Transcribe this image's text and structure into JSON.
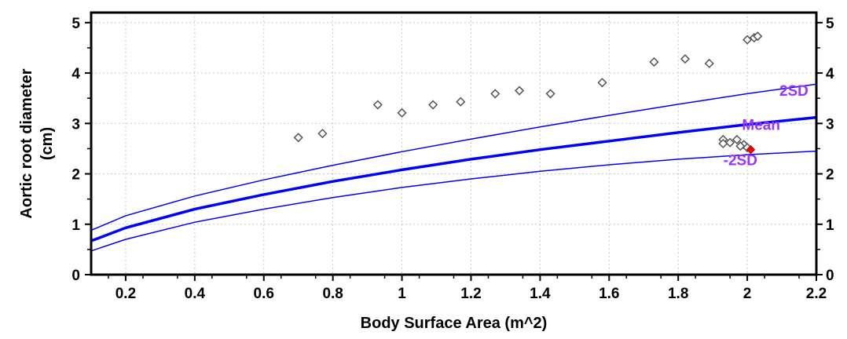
{
  "chart_data": {
    "type": "scatter",
    "title": "",
    "xlabel": "Body Surface Area (m^2)",
    "ylabel_line1": "Aortic root diameter",
    "ylabel_line2": "(cm)",
    "xlim": [
      0.1,
      2.2
    ],
    "ylim": [
      0,
      5.2
    ],
    "x_ticks": [
      0.2,
      0.4,
      0.6,
      0.8,
      1,
      1.2,
      1.4,
      1.6,
      1.8,
      2,
      2.2
    ],
    "x_tick_labels": [
      "0.2",
      "0.4",
      "0.6",
      "0.8",
      "1",
      "1.2",
      "1.4",
      "1.6",
      "1.8",
      "2",
      "2.2"
    ],
    "y_ticks": [
      0,
      1,
      2,
      3,
      4,
      5
    ],
    "y_tick_labels": [
      "0",
      "1",
      "2",
      "3",
      "4",
      "5"
    ],
    "grid": true,
    "colors": {
      "curve": "#0000ff",
      "label": "#9933ff",
      "marker": "#555555",
      "highlight": "#ff0000"
    },
    "curves": [
      {
        "name": "2SD",
        "label": "2SD",
        "x": [
          0.1,
          0.2,
          0.4,
          0.6,
          0.8,
          1.0,
          1.2,
          1.4,
          1.6,
          1.8,
          2.0,
          2.2
        ],
        "y": [
          0.88,
          1.17,
          1.56,
          1.88,
          2.17,
          2.44,
          2.69,
          2.93,
          3.16,
          3.38,
          3.59,
          3.78
        ]
      },
      {
        "name": "Mean",
        "label": "Mean",
        "x": [
          0.1,
          0.2,
          0.4,
          0.6,
          0.8,
          1.0,
          1.2,
          1.4,
          1.6,
          1.8,
          2.0,
          2.2
        ],
        "y": [
          0.67,
          0.93,
          1.3,
          1.59,
          1.85,
          2.08,
          2.29,
          2.48,
          2.65,
          2.82,
          2.98,
          3.12
        ]
      },
      {
        "name": "-2SD",
        "label": "-2SD",
        "x": [
          0.1,
          0.2,
          0.4,
          0.6,
          0.8,
          1.0,
          1.2,
          1.4,
          1.6,
          1.8,
          2.0,
          2.2
        ],
        "y": [
          0.47,
          0.7,
          1.04,
          1.3,
          1.53,
          1.73,
          1.9,
          2.05,
          2.18,
          2.29,
          2.38,
          2.45
        ]
      }
    ],
    "points": [
      {
        "x": 0.7,
        "y": 2.72
      },
      {
        "x": 0.77,
        "y": 2.8
      },
      {
        "x": 0.93,
        "y": 3.37
      },
      {
        "x": 1.0,
        "y": 3.21
      },
      {
        "x": 1.09,
        "y": 3.37
      },
      {
        "x": 1.17,
        "y": 3.43
      },
      {
        "x": 1.27,
        "y": 3.59
      },
      {
        "x": 1.34,
        "y": 3.65
      },
      {
        "x": 1.43,
        "y": 3.59
      },
      {
        "x": 1.58,
        "y": 3.81
      },
      {
        "x": 1.73,
        "y": 4.22
      },
      {
        "x": 1.82,
        "y": 4.28
      },
      {
        "x": 1.89,
        "y": 4.19
      },
      {
        "x": 2.0,
        "y": 4.66
      },
      {
        "x": 2.02,
        "y": 4.7
      },
      {
        "x": 2.03,
        "y": 4.73
      },
      {
        "x": 1.93,
        "y": 2.68
      },
      {
        "x": 1.93,
        "y": 2.6
      },
      {
        "x": 1.95,
        "y": 2.62
      },
      {
        "x": 1.97,
        "y": 2.68
      },
      {
        "x": 1.99,
        "y": 2.58
      },
      {
        "x": 2.0,
        "y": 2.52
      },
      {
        "x": 1.98,
        "y": 2.55
      }
    ],
    "highlight_point": {
      "x": 2.01,
      "y": 2.48
    }
  }
}
